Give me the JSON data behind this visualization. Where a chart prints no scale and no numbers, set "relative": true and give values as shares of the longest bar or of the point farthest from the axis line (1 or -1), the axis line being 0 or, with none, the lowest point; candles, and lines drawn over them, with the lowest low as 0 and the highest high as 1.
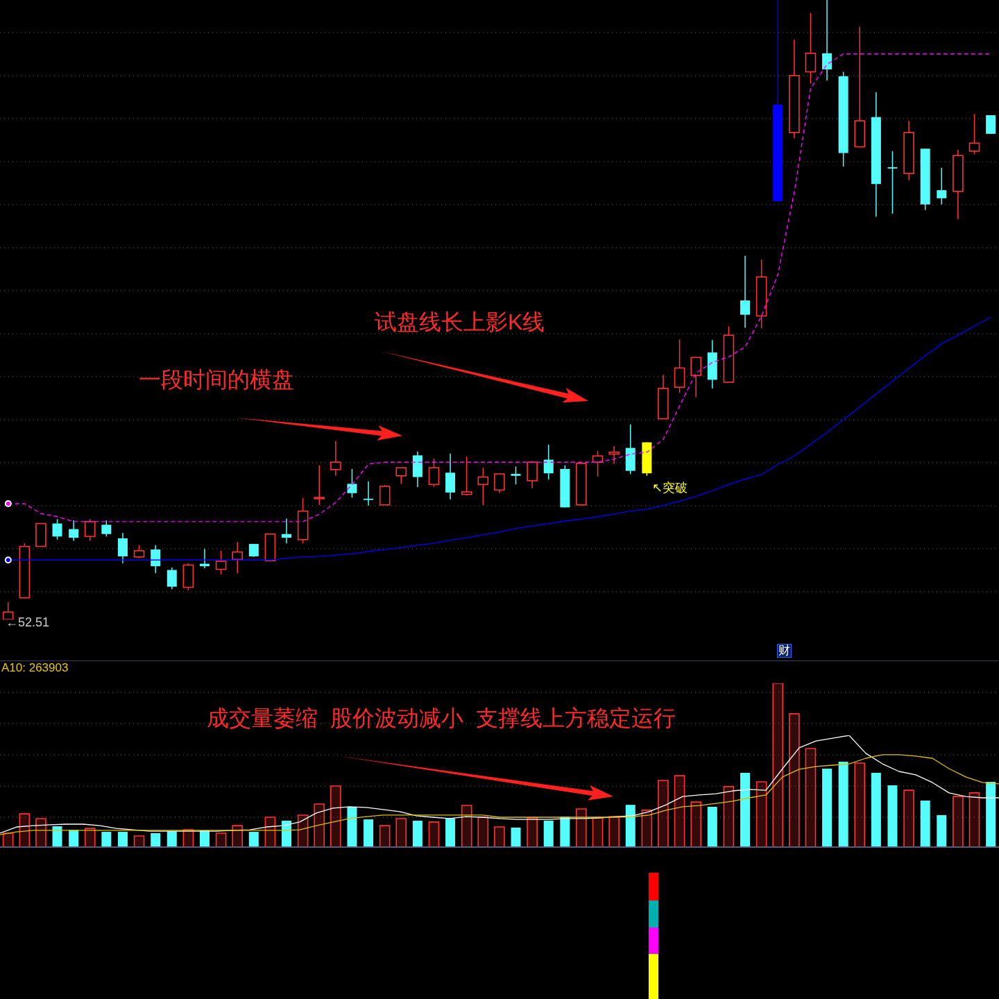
{
  "chart_data": [
    {
      "type": "candlestick",
      "relative": true,
      "grid": true,
      "marker": "none",
      "categories": [
        null,
        null,
        null,
        null,
        null,
        null,
        null,
        null,
        null,
        null,
        null,
        null,
        null,
        null,
        null,
        null,
        null,
        null,
        null,
        null,
        null,
        null,
        null,
        null,
        null,
        null,
        null,
        null,
        null,
        null,
        null,
        null,
        null,
        null,
        null,
        null,
        null,
        null,
        null,
        null,
        null,
        null,
        null,
        null,
        null,
        null,
        null,
        null,
        null,
        null,
        null,
        null,
        null,
        null,
        null,
        null,
        null,
        null,
        null,
        null,
        null
      ],
      "ohlc": [
        [
          0,
          0.028,
          0,
          0.012
        ],
        [
          0.035,
          0.123,
          0.035,
          0.118
        ],
        [
          0.118,
          0.155,
          0.118,
          0.155
        ],
        [
          0.155,
          0.162,
          0.129,
          0.134
        ],
        [
          0.146,
          0.16,
          0.127,
          0.132
        ],
        [
          0.134,
          0.162,
          0.127,
          0.158
        ],
        [
          0.153,
          0.16,
          0.134,
          0.138
        ],
        [
          0.131,
          0.14,
          0.091,
          0.102
        ],
        [
          0.101,
          0.12,
          0.099,
          0.111
        ],
        [
          0.113,
          0.12,
          0.075,
          0.086
        ],
        [
          0.08,
          0.084,
          0.049,
          0.053
        ],
        [
          0.052,
          0.091,
          0.047,
          0.088
        ],
        [
          0.09,
          0.114,
          0.083,
          0.086
        ],
        [
          0.081,
          0.111,
          0.073,
          0.094
        ],
        [
          0.097,
          0.125,
          0.075,
          0.109
        ],
        [
          0.122,
          0.122,
          0.101,
          0.102
        ],
        [
          0.095,
          0.138,
          0.095,
          0.138
        ],
        [
          0.138,
          0.163,
          0.123,
          0.132
        ],
        [
          0.129,
          0.196,
          0.123,
          0.175
        ],
        [
          0.195,
          0.249,
          0.185,
          0.197
        ],
        [
          0.242,
          0.288,
          0.232,
          0.254
        ],
        [
          0.219,
          0.243,
          0.197,
          0.204
        ],
        [
          0.195,
          0.223,
          0.184,
          0.193
        ],
        [
          0.185,
          0.217,
          0.185,
          0.215
        ],
        [
          0.232,
          0.245,
          0.219,
          0.245
        ],
        [
          0.265,
          0.271,
          0.214,
          0.23
        ],
        [
          0.218,
          0.26,
          0.214,
          0.245
        ],
        [
          0.237,
          0.268,
          0.194,
          0.205
        ],
        [
          0.202,
          0.263,
          0.2,
          0.206
        ],
        [
          0.218,
          0.245,
          0.185,
          0.23
        ],
        [
          0.209,
          0.235,
          0.204,
          0.235
        ],
        [
          0.235,
          0.247,
          0.218,
          0.232
        ],
        [
          0.224,
          0.255,
          0.212,
          0.254
        ],
        [
          0.258,
          0.282,
          0.226,
          0.236
        ],
        [
          0.243,
          0.249,
          0.181,
          0.181
        ],
        [
          0.185,
          0.253,
          0.184,
          0.252
        ],
        [
          0.254,
          0.272,
          0.231,
          0.264
        ],
        [
          0.267,
          0.28,
          0.251,
          0.27
        ],
        [
          0.277,
          0.315,
          0.235,
          0.24
        ],
        [
          0.236,
          0.286,
          0.232,
          0.286
        ],
        [
          0.324,
          0.395,
          0.324,
          0.373
        ],
        [
          0.375,
          0.452,
          0.366,
          0.406
        ],
        [
          0.394,
          0.423,
          0.359,
          0.423
        ],
        [
          0.431,
          0.451,
          0.373,
          0.387
        ],
        [
          0.383,
          0.473,
          0.383,
          0.459
        ],
        [
          0.515,
          0.587,
          0.471,
          0.492
        ],
        [
          0.49,
          0.581,
          0.47,
          0.553
        ],
        [
          0.675,
          1,
          0.675,
          0.831
        ],
        [
          0.786,
          0.936,
          0.777,
          0.878
        ],
        [
          0.884,
          0.979,
          0.865,
          0.914
        ],
        [
          0.914,
          1,
          0.87,
          0.888
        ],
        [
          0.877,
          0.884,
          0.731,
          0.753
        ],
        [
          0.763,
          0.957,
          0.763,
          0.805
        ],
        [
          0.811,
          0.851,
          0.65,
          0.703
        ],
        [
          0.73,
          0.756,
          0.655,
          0.728
        ],
        [
          0.72,
          0.805,
          0.709,
          0.786
        ],
        [
          0.76,
          0.76,
          0.661,
          0.67
        ],
        [
          0.693,
          0.729,
          0.67,
          0.68
        ],
        [
          0.691,
          0.758,
          0.646,
          0.749
        ],
        [
          0.756,
          0.816,
          0.751,
          0.769
        ],
        [
          0.814,
          0.814,
          0.784,
          0.784
        ]
      ],
      "colors": [
        "#ff3232",
        "#ff3232",
        "#ff3232",
        "#54fcfc",
        "#54fcfc",
        "#ff3232",
        "#54fcfc",
        "#54fcfc",
        "#ff3232",
        "#54fcfc",
        "#54fcfc",
        "#ff3232",
        "#54fcfc",
        "#ff3232",
        "#ff3232",
        "#54fcfc",
        "#ff3232",
        "#54fcfc",
        "#ff3232",
        "#ff3232",
        "#ff3232",
        "#54fcfc",
        "#54fcfc",
        "#ff3232",
        "#ff3232",
        "#54fcfc",
        "#ff3232",
        "#54fcfc",
        "#ff3232",
        "#ff3232",
        "#ff3232",
        "#54fcfc",
        "#ff3232",
        "#54fcfc",
        "#54fcfc",
        "#ff3232",
        "#ff3232",
        "#ff3232",
        "#54fcfc",
        "#ffff00",
        "#ff3232",
        "#ff3232",
        "#ff3232",
        "#54fcfc",
        "#ff3232",
        "#54fcfc",
        "#ff3232",
        "#0000ff",
        "#ff3232",
        "#ff3232",
        "#54fcfc",
        "#54fcfc",
        "#ff3232",
        "#54fcfc",
        "#54fcfc",
        "#ff3232",
        "#54fcfc",
        "#54fcfc",
        "#ff3232",
        "#ff3232",
        "#54fcfc"
      ],
      "series": [
        {
          "type": "line",
          "color": "#ff00ff",
          "line_style": "dashed",
          "values": [
            0.187,
            0.187,
            0.171,
            0.166,
            0.158,
            0.158,
            0.158,
            0.158,
            0.158,
            0.158,
            0.158,
            0.158,
            0.158,
            0.158,
            0.158,
            0.158,
            0.158,
            0.158,
            0.158,
            0.17,
            0.189,
            0.218,
            0.251,
            0.254,
            0.254,
            0.254,
            0.254,
            0.254,
            0.254,
            0.254,
            0.254,
            0.254,
            0.254,
            0.254,
            0.254,
            0.254,
            0.254,
            0.259,
            0.267,
            0.27,
            0.291,
            0.345,
            0.398,
            0.415,
            0.424,
            0.44,
            0.49,
            0.557,
            0.69,
            0.858,
            0.896,
            0.913,
            0.913,
            0.913,
            0.913,
            0.913,
            0.913,
            0.913,
            0.913,
            0.913,
            0.913
          ]
        },
        {
          "type": "line",
          "color": "#0000ff",
          "line_style": "solid",
          "values": [
            0.096,
            0.096,
            0.096,
            0.096,
            0.096,
            0.096,
            0.096,
            0.096,
            0.096,
            0.096,
            0.096,
            0.096,
            0.096,
            0.096,
            0.096,
            0.096,
            0.096,
            0.099,
            0.101,
            0.102,
            0.104,
            0.106,
            0.11,
            0.113,
            0.116,
            0.12,
            0.123,
            0.128,
            0.132,
            0.137,
            0.141,
            0.147,
            0.151,
            0.155,
            0.159,
            0.162,
            0.166,
            0.17,
            0.175,
            0.178,
            0.184,
            0.191,
            0.199,
            0.208,
            0.218,
            0.227,
            0.234,
            0.25,
            0.264,
            0.283,
            0.302,
            0.323,
            0.343,
            0.364,
            0.385,
            0.406,
            0.426,
            0.445,
            0.459,
            0.474,
            0.488
          ]
        }
      ],
      "annotations": [
        "一段时间的横盘",
        "试盘线长上影K线",
        "↖突破",
        "←52.51",
        "财"
      ]
    },
    {
      "type": "bar",
      "relative": true,
      "grid": true,
      "marker": "none",
      "categories": [
        null,
        null,
        null,
        null,
        null,
        null,
        null,
        null,
        null,
        null,
        null,
        null,
        null,
        null,
        null,
        null,
        null,
        null,
        null,
        null,
        null,
        null,
        null,
        null,
        null,
        null,
        null,
        null,
        null,
        null,
        null,
        null,
        null,
        null,
        null,
        null,
        null,
        null,
        null,
        null,
        null,
        null,
        null,
        null,
        null,
        null,
        null,
        null,
        null,
        null,
        null,
        null,
        null,
        null,
        null,
        null,
        null,
        null,
        null,
        null,
        null
      ],
      "series": [
        {
          "type": "bar",
          "values": [
            0.085,
            0.203,
            0.174,
            0.127,
            0.106,
            0.114,
            0.093,
            0.093,
            0.068,
            0.085,
            0.097,
            0.106,
            0.102,
            0.085,
            0.131,
            0.093,
            0.182,
            0.161,
            0.195,
            0.263,
            0.373,
            0.246,
            0.169,
            0.131,
            0.174,
            0.161,
            0.153,
            0.174,
            0.254,
            0.182,
            0.123,
            0.119,
            0.178,
            0.161,
            0.186,
            0.233,
            0.182,
            0.186,
            0.258,
            0.225,
            0.407,
            0.436,
            0.275,
            0.246,
            0.369,
            0.453,
            0.398,
            1,
            0.814,
            0.602,
            0.479,
            0.521,
            0.513,
            0.453,
            0.377,
            0.347,
            0.284,
            0.195,
            0.309,
            0.331,
            0.398
          ],
          "colors": [
            "#ff3232",
            "#ff3232",
            "#ff3232",
            "#54fcfc",
            "#54fcfc",
            "#ff3232",
            "#54fcfc",
            "#54fcfc",
            "#ff3232",
            "#54fcfc",
            "#54fcfc",
            "#ff3232",
            "#54fcfc",
            "#ff3232",
            "#ff3232",
            "#54fcfc",
            "#ff3232",
            "#54fcfc",
            "#ff3232",
            "#ff3232",
            "#ff3232",
            "#54fcfc",
            "#54fcfc",
            "#ff3232",
            "#ff3232",
            "#54fcfc",
            "#ff3232",
            "#54fcfc",
            "#ff3232",
            "#ff3232",
            "#ff3232",
            "#54fcfc",
            "#ff3232",
            "#54fcfc",
            "#54fcfc",
            "#ff3232",
            "#ff3232",
            "#ff3232",
            "#54fcfc",
            "#ff3232",
            "#ff3232",
            "#ff3232",
            "#ff3232",
            "#54fcfc",
            "#ff3232",
            "#54fcfc",
            "#ff3232",
            "#ff3232",
            "#ff3232",
            "#ff3232",
            "#54fcfc",
            "#54fcfc",
            "#ff3232",
            "#54fcfc",
            "#54fcfc",
            "#ff3232",
            "#54fcfc",
            "#54fcfc",
            "#ff3232",
            "#ff3232",
            "#54fcfc"
          ]
        }
      ],
      "annotations": [
        "A10: 263903",
        "成交量萎缩  股价波动减小  支撑线上方稳定运行"
      ]
    },
    {
      "type": "line",
      "relative": true,
      "marker": "none",
      "categories": [
        null,
        null,
        null,
        null,
        null,
        null,
        null,
        null,
        null,
        null,
        null,
        null,
        null,
        null,
        null,
        null,
        null,
        null,
        null,
        null,
        null,
        null,
        null,
        null,
        null,
        null,
        null,
        null,
        null,
        null,
        null,
        null,
        null,
        null,
        null,
        null,
        null,
        null,
        null,
        null,
        null,
        null,
        null,
        null,
        null,
        null,
        null,
        null,
        null,
        null,
        null,
        null,
        null,
        null,
        null,
        null,
        null,
        null,
        null,
        null,
        null
      ],
      "series": [
        {
          "color": "#ffffff",
          "line_style": "solid",
          "values": [
            0.125,
            0.18,
            0.192,
            0.199,
            0.205,
            0.205,
            0.192,
            0.167,
            0.155,
            0.142,
            0.142,
            0.142,
            0.142,
            0.142,
            0.15,
            0.155,
            0.18,
            0.192,
            0.224,
            0.305,
            0.348,
            0.361,
            0.355,
            0.336,
            0.317,
            0.28,
            0.267,
            0.255,
            0.273,
            0.267,
            0.255,
            0.248,
            0.248,
            0.248,
            0.255,
            0.255,
            0.261,
            0.273,
            0.28,
            0.317,
            0.378,
            0.453,
            0.466,
            0.478,
            0.503,
            0.516,
            0.509,
            0.702,
            0.889,
            0.95,
            0.975,
            1,
            0.839,
            0.745,
            0.677,
            0.647,
            0.578,
            0.485,
            0.453,
            0.441,
            0.441
          ]
        },
        {
          "color": "#e0c000",
          "line_style": "solid",
          "values": [
            0.111,
            0.136,
            0.15,
            0.15,
            0.15,
            0.15,
            0.15,
            0.15,
            0.15,
            0.15,
            0.15,
            0.15,
            0.15,
            0.15,
            0.15,
            0.15,
            0.15,
            0.15,
            0.155,
            0.192,
            0.224,
            0.255,
            0.273,
            0.286,
            0.286,
            0.286,
            0.286,
            0.286,
            0.286,
            0.286,
            0.267,
            0.267,
            0.267,
            0.267,
            0.267,
            0.267,
            0.267,
            0.267,
            0.273,
            0.286,
            0.33,
            0.361,
            0.372,
            0.391,
            0.411,
            0.441,
            0.466,
            0.628,
            0.696,
            0.721,
            0.733,
            0.745,
            0.795,
            0.827,
            0.827,
            0.814,
            0.795,
            0.702,
            0.628,
            0.578,
            0.566
          ]
        }
      ]
    }
  ]
}
